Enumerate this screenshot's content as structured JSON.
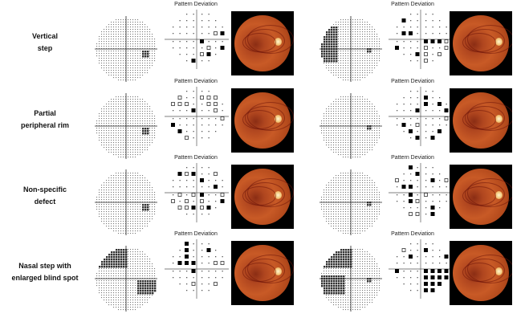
{
  "rows": [
    {
      "label_lines": [
        "Vertical",
        "step"
      ]
    },
    {
      "label_lines": [
        "Partial",
        "peripheral rim"
      ]
    },
    {
      "label_lines": [
        "Non-specific",
        "defect"
      ]
    },
    {
      "label_lines": [
        "Nasal step with",
        "enlarged blind spot"
      ]
    }
  ],
  "plot_title": "Pattern Deviation"
}
